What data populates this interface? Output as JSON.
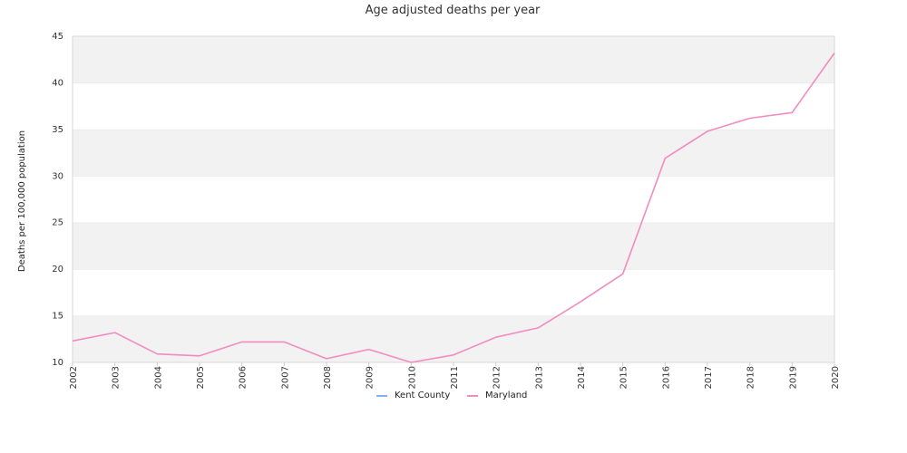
{
  "chart_data": {
    "type": "line",
    "title": "Age adjusted deaths per year",
    "xlabel": "",
    "ylabel": "Deaths per 100,000 population",
    "x": [
      "2002",
      "2003",
      "2004",
      "2005",
      "2006",
      "2007",
      "2008",
      "2009",
      "2010",
      "2011",
      "2012",
      "2013",
      "2014",
      "2015",
      "2016",
      "2017",
      "2018",
      "2019",
      "2020"
    ],
    "ylim": [
      10,
      45
    ],
    "yticks": [
      10,
      15,
      20,
      25,
      30,
      35,
      40,
      45
    ],
    "grid": "alternating horizontal bands",
    "legend_position": "bottom-center",
    "series": [
      {
        "name": "Kent County",
        "color": "#7cb5ec",
        "values": [
          null,
          null,
          null,
          null,
          null,
          null,
          null,
          null,
          null,
          null,
          null,
          null,
          null,
          null,
          null,
          null,
          null,
          null,
          null
        ]
      },
      {
        "name": "Maryland",
        "color": "#f28cc0",
        "values": [
          12.3,
          13.2,
          10.9,
          10.7,
          12.2,
          12.2,
          10.4,
          11.4,
          10.0,
          10.8,
          12.7,
          13.7,
          16.5,
          19.5,
          31.9,
          34.8,
          36.2,
          36.8,
          43.2
        ]
      }
    ]
  }
}
